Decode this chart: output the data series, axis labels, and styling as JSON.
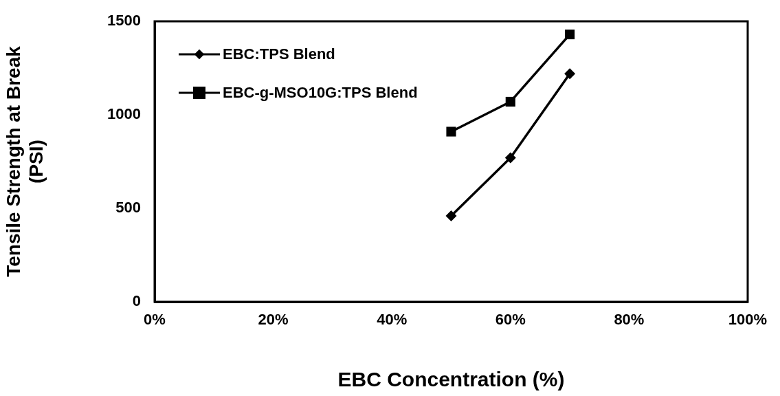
{
  "chart_data": {
    "type": "line",
    "xlabel": "EBC Concentration (%)",
    "ylabel": "Tensile Strength at Break (PSI)",
    "x": [
      50,
      60,
      70
    ],
    "series": [
      {
        "name": "EBC:TPS Blend",
        "color": "#000000",
        "marker": "diamond",
        "values": [
          460,
          770,
          1220
        ]
      },
      {
        "name": "EBC-g-MSO10G:TPS Blend",
        "color": "#000000",
        "marker": "square",
        "values": [
          910,
          1070,
          1430
        ]
      }
    ],
    "xlim": [
      0,
      100
    ],
    "xticks": [
      {
        "value": 0,
        "label": "0%"
      },
      {
        "value": 20,
        "label": "20%"
      },
      {
        "value": 40,
        "label": "40%"
      },
      {
        "value": 60,
        "label": "60%"
      },
      {
        "value": 80,
        "label": "80%"
      },
      {
        "value": 100,
        "label": "100%"
      }
    ],
    "ylim": [
      0,
      1500
    ],
    "yticks": [
      0,
      500,
      1000,
      1500
    ],
    "grid": false,
    "legend": "top left",
    "line_style": "solid"
  }
}
